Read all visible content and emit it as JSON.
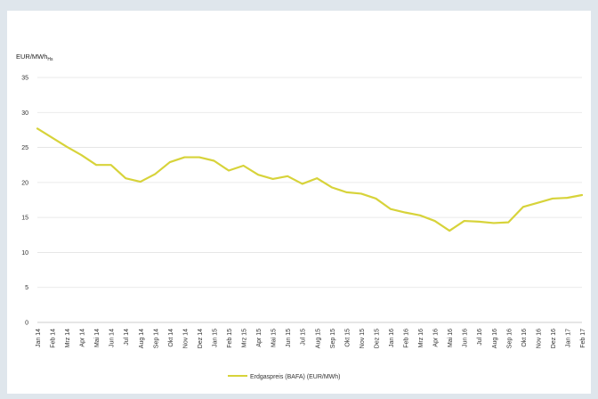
{
  "chart_data": {
    "type": "line",
    "ylabel": "EUR/MWh",
    "ylabel_sub": "Hs",
    "ylim": [
      0,
      35
    ],
    "yticks": [
      0,
      5,
      10,
      15,
      20,
      25,
      30,
      35
    ],
    "grid": true,
    "legend_position": "bottom-center",
    "categories": [
      "Jan 14",
      "Feb 14",
      "Mrz 14",
      "Apr 14",
      "Mai 14",
      "Jun 14",
      "Jul 14",
      "Aug 14",
      "Sep 14",
      "Okt 14",
      "Nov 14",
      "Dez 14",
      "Jan 15",
      "Feb 15",
      "Mrz 15",
      "Apr 15",
      "Mai 15",
      "Jun 15",
      "Jul 15",
      "Aug 15",
      "Sep 15",
      "Okt 15",
      "Nov 15",
      "Dez 15",
      "Jan 16",
      "Feb 16",
      "Mrz 16",
      "Apr 16",
      "Mai 16",
      "Jun 16",
      "Jul 16",
      "Aug 16",
      "Sep 16",
      "Okt 16",
      "Nov 16",
      "Dez 16",
      "Jan 17",
      "Feb 17"
    ],
    "series": [
      {
        "name": "Erdgaspreis (BAFA) (EUR/MWh)",
        "color": "#d7d33a",
        "values": [
          27.7,
          26.4,
          25.1,
          23.9,
          22.5,
          22.5,
          20.6,
          20.1,
          21.2,
          22.9,
          23.6,
          23.6,
          23.1,
          21.7,
          22.4,
          21.1,
          20.5,
          20.9,
          19.8,
          20.6,
          19.3,
          18.6,
          18.4,
          17.7,
          16.2,
          15.7,
          15.3,
          14.5,
          13.1,
          14.5,
          14.4,
          14.2,
          14.3,
          16.5,
          17.1,
          17.7,
          17.8,
          18.2
        ]
      }
    ]
  }
}
